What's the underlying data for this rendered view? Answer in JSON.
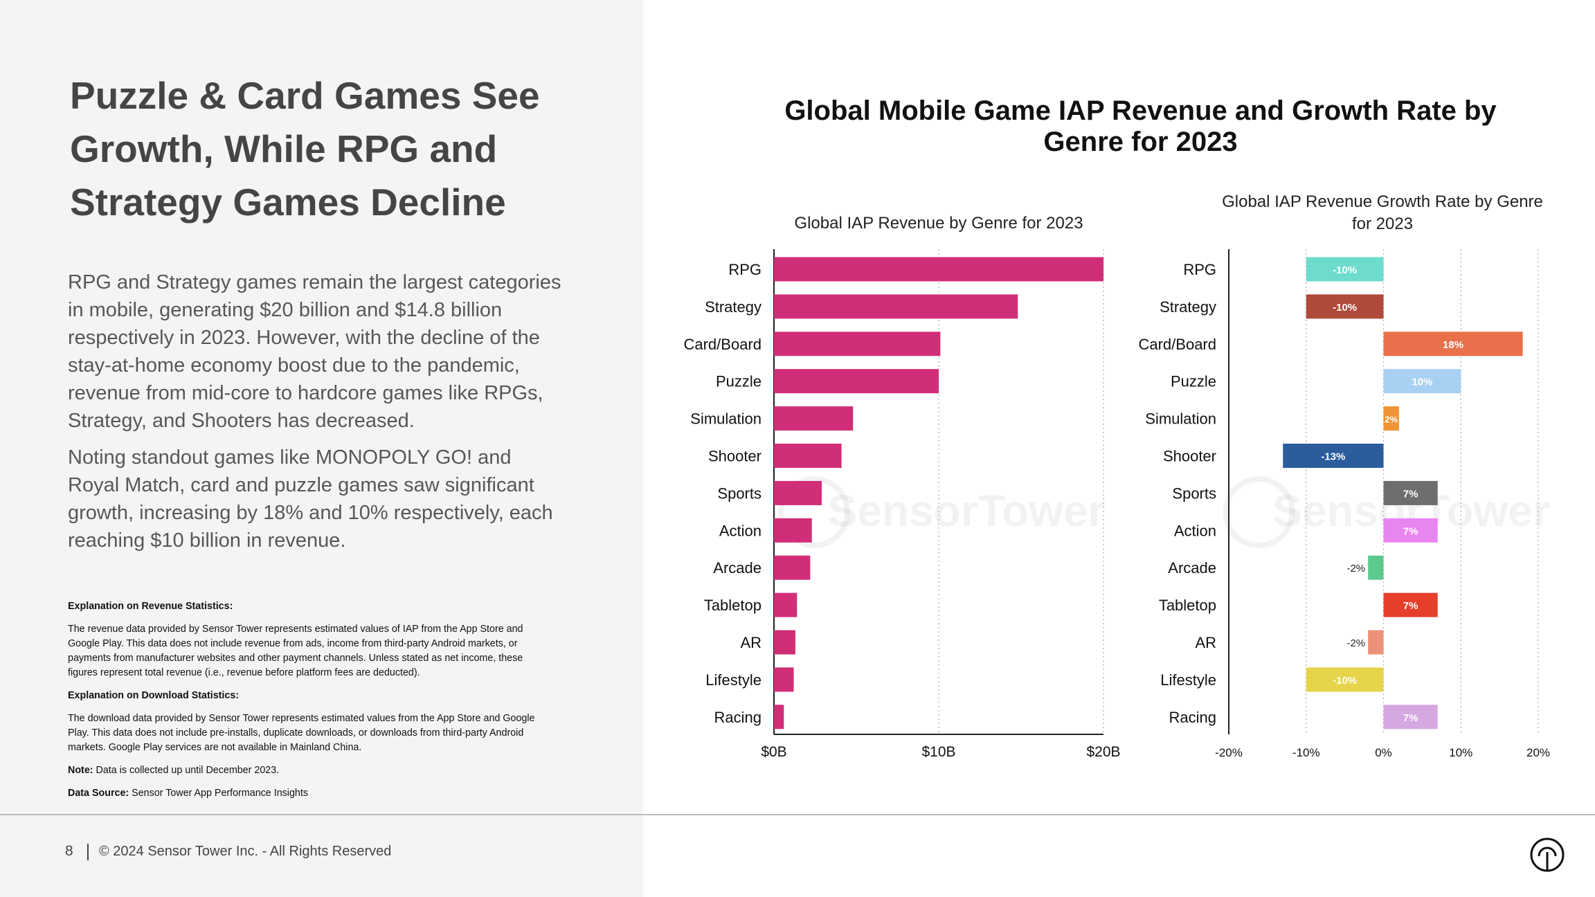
{
  "left": {
    "title": "Puzzle & Card Games See Growth, While RPG and Strategy Games Decline",
    "paragraphs": [
      "RPG and Strategy games remain the largest categories in mobile, generating $20 billion and $14.8 billion respectively in 2023. However, with the decline of the stay-at-home economy boost due to the pandemic, revenue from mid-core to hardcore games like RPGs, Strategy, and Shooters has decreased.",
      "Noting standout games like MONOPOLY GO! and Royal Match, card and puzzle games saw significant growth, increasing by 18% and 10% respectively, each reaching $10 billion in revenue."
    ],
    "notes": {
      "revenue_heading": "Explanation on Revenue Statistics:",
      "revenue_text": "The revenue data provided by Sensor Tower represents estimated values of IAP from the App Store and Google Play. This data does not include revenue from ads, income from third-party Android markets, or payments from manufacturer websites and other payment channels. Unless stated as net income, these figures represent total revenue (i.e., revenue before platform fees are deducted).",
      "download_heading": "Explanation on Download Statistics:",
      "download_text": "The download data provided by Sensor Tower represents estimated values from the App Store and Google Play. This data does not include pre-installs, duplicate downloads, or downloads from third-party Android markets. Google Play services are not available in Mainland China.",
      "note_label": "Note:",
      "note_text": " Data is collected up until December 2023.",
      "source_label": "Data Source:",
      "source_text": " Sensor Tower App Performance Insights"
    }
  },
  "footer": {
    "page_number": "8",
    "copyright": "© 2024 Sensor Tower Inc. - All Rights Reserved",
    "logo": "sensor-tower-logo"
  },
  "watermark": "SensorTower",
  "chart_title": "Global Mobile Game IAP Revenue and Growth Rate by Genre for 2023",
  "chart_data": [
    {
      "type": "bar",
      "orientation": "horizontal",
      "title": "Global IAP Revenue by Genre for 2023",
      "categories": [
        "RPG",
        "Strategy",
        "Card/Board",
        "Puzzle",
        "Simulation",
        "Shooter",
        "Sports",
        "Action",
        "Arcade",
        "Tabletop",
        "AR",
        "Lifestyle",
        "Racing"
      ],
      "values": [
        20.0,
        14.8,
        10.1,
        10.0,
        4.8,
        4.1,
        2.9,
        2.3,
        2.2,
        1.4,
        1.3,
        1.2,
        0.6
      ],
      "unit": "billion USD",
      "xlim": [
        0,
        20
      ],
      "xticks": [
        "$0B",
        "$10B",
        "$20B"
      ],
      "grid": "vertical dotted",
      "color": "#d12e78"
    },
    {
      "type": "bar",
      "orientation": "horizontal",
      "title": "Global IAP Revenue Growth Rate by Genre for 2023",
      "categories": [
        "RPG",
        "Strategy",
        "Card/Board",
        "Puzzle",
        "Simulation",
        "Shooter",
        "Sports",
        "Action",
        "Arcade",
        "Tabletop",
        "AR",
        "Lifestyle",
        "Racing"
      ],
      "values": [
        -10,
        -10,
        18,
        10,
        2,
        -13,
        7,
        7,
        -2,
        7,
        -2,
        -10,
        7
      ],
      "labels": [
        "-10%",
        "-10%",
        "18%",
        "10%",
        "2%",
        "-13%",
        "7%",
        "7%",
        "-2%",
        "7%",
        "-2%",
        "-10%",
        "7%"
      ],
      "colors": [
        "#6ddccc",
        "#b04a3a",
        "#e8704a",
        "#a8d0f2",
        "#ee9434",
        "#2c5c9c",
        "#6e6e6e",
        "#e985ef",
        "#5dc98e",
        "#e53f2c",
        "#ec9178",
        "#e6d44a",
        "#d6a8e2"
      ],
      "xlim": [
        -20,
        20
      ],
      "xticks": [
        "-20%",
        "-10%",
        "0%",
        "10%",
        "20%"
      ],
      "grid": "vertical dotted"
    }
  ]
}
